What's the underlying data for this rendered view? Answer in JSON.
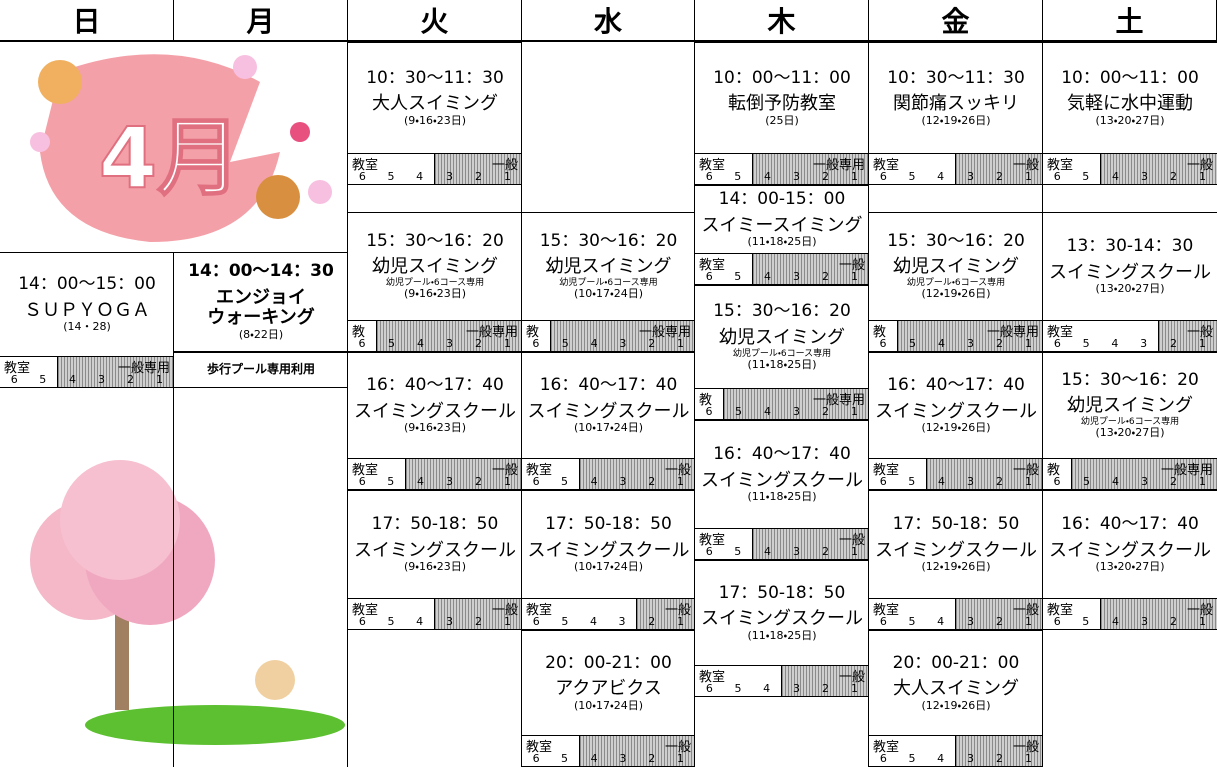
{
  "month": "4月",
  "days": [
    {
      "name": "日",
      "blocks": [
        {
          "time": "14：00〜15：00",
          "title": [
            "ＳＵＰＹＯＧＡ"
          ],
          "dates": "(14・28)",
          "lanes": {
            "classroom": {
              "label": "教室",
              "numbers": [
                "6",
                "5"
              ]
            },
            "general": {
              "label": "一般専用",
              "numbers": [
                "4",
                "3",
                "2",
                "1"
              ]
            }
          }
        }
      ]
    },
    {
      "name": "月",
      "blocks": [
        {
          "time": "14：00〜14：30",
          "title": [
            "エンジョイ",
            "ウォーキング"
          ],
          "dates": "(8・22日)"
        },
        {
          "text": "歩行プール専用利用"
        }
      ]
    },
    {
      "name": "火",
      "blocks": [
        {
          "time": "10：30〜11：30",
          "title": [
            "大人スイミング"
          ],
          "dates": "(9・16・23日)",
          "lanes": {
            "classroom": {
              "label": "教室",
              "numbers": [
                "6",
                "5",
                "4"
              ]
            },
            "general": {
              "label": "一般",
              "numbers": [
                "3",
                "2",
                "1"
              ]
            }
          }
        },
        {
          "time": "15：30〜16：20",
          "title": [
            "幼児スイミング"
          ],
          "note": "幼児プール・6コース専用",
          "dates": "(9・16・23日)",
          "lanes": {
            "classroom": {
              "label": "教",
              "numbers": [
                "6"
              ]
            },
            "general": {
              "label": "一般専用",
              "numbers": [
                "5",
                "4",
                "3",
                "2",
                "1"
              ]
            }
          }
        },
        {
          "time": "16：40〜17：40",
          "title": [
            "スイミングスクール"
          ],
          "dates": "(9・16・23日)",
          "lanes": {
            "classroom": {
              "label": "教室",
              "numbers": [
                "6",
                "5"
              ]
            },
            "general": {
              "label": "一般",
              "numbers": [
                "4",
                "3",
                "2",
                "1"
              ]
            }
          }
        },
        {
          "time": "17：50-18：50",
          "title": [
            "スイミングスクール"
          ],
          "dates": "(9・16・23日)",
          "lanes": {
            "classroom": {
              "label": "教室",
              "numbers": [
                "6",
                "5",
                "4"
              ]
            },
            "general": {
              "label": "一般",
              "numbers": [
                "3",
                "2",
                "1"
              ]
            }
          }
        }
      ]
    },
    {
      "name": "水",
      "blocks": [
        {
          "time": "15：30〜16：20",
          "title": [
            "幼児スイミング"
          ],
          "note": "幼児プール・6コース専用",
          "dates": "(10・17・24日)",
          "lanes": {
            "classroom": {
              "label": "教",
              "numbers": [
                "6"
              ]
            },
            "general": {
              "label": "一般専用",
              "numbers": [
                "5",
                "4",
                "3",
                "2",
                "1"
              ]
            }
          }
        },
        {
          "time": "16：40〜17：40",
          "title": [
            "スイミングスクール"
          ],
          "dates": "(10・17・24日)",
          "lanes": {
            "classroom": {
              "label": "教室",
              "numbers": [
                "6",
                "5"
              ]
            },
            "general": {
              "label": "一般",
              "numbers": [
                "4",
                "3",
                "2",
                "1"
              ]
            }
          }
        },
        {
          "time": "17：50-18：50",
          "title": [
            "スイミングスクール"
          ],
          "dates": "(10・17・24日)",
          "lanes": {
            "classroom": {
              "label": "教室",
              "numbers": [
                "6",
                "5",
                "4",
                "3"
              ]
            },
            "general": {
              "label": "一般",
              "numbers": [
                "2",
                "1"
              ]
            }
          }
        },
        {
          "time": "20：00-21：00",
          "title": [
            "アクアビクス"
          ],
          "dates": "(10・17・24日)",
          "lanes": {
            "classroom": {
              "label": "教室",
              "numbers": [
                "6",
                "5"
              ]
            },
            "general": {
              "label": "一般",
              "numbers": [
                "4",
                "3",
                "2",
                "1"
              ]
            }
          }
        }
      ]
    },
    {
      "name": "木",
      "blocks": [
        {
          "time": "10：00〜11：00",
          "title": [
            "転倒予防教室"
          ],
          "dates": "(25日)",
          "lanes": {
            "classroom": {
              "label": "教室",
              "numbers": [
                "6",
                "5"
              ]
            },
            "general": {
              "label": "一般専用",
              "numbers": [
                "4",
                "3",
                "2",
                "1"
              ]
            }
          }
        },
        {
          "time": "14：00-15：00",
          "title": [
            "スイミースイミング"
          ],
          "dates": "(11・18・25日)",
          "lanes": {
            "classroom": {
              "label": "教室",
              "numbers": [
                "6",
                "5"
              ]
            },
            "general": {
              "label": "一般",
              "numbers": [
                "4",
                "3",
                "2",
                "1"
              ]
            }
          }
        },
        {
          "time": "15：30〜16：20",
          "title": [
            "幼児スイミング"
          ],
          "note": "幼児プール・6コース専用",
          "dates": "(11・18・25日)",
          "lanes": {
            "classroom": {
              "label": "教",
              "numbers": [
                "6"
              ]
            },
            "general": {
              "label": "一般専用",
              "numbers": [
                "5",
                "4",
                "3",
                "2",
                "1"
              ]
            }
          }
        },
        {
          "time": "16：40〜17：40",
          "title": [
            "スイミングスクール"
          ],
          "dates": "(11・18・25日)",
          "lanes": {
            "classroom": {
              "label": "教室",
              "numbers": [
                "6",
                "5"
              ]
            },
            "general": {
              "label": "一般",
              "numbers": [
                "4",
                "3",
                "2",
                "1"
              ]
            }
          }
        },
        {
          "time": "17：50-18：50",
          "title": [
            "スイミングスクール"
          ],
          "dates": "(11・18・25日)",
          "lanes": {
            "classroom": {
              "label": "教室",
              "numbers": [
                "6",
                "5",
                "4"
              ]
            },
            "general": {
              "label": "一般",
              "numbers": [
                "3",
                "2",
                "1"
              ]
            }
          }
        }
      ]
    },
    {
      "name": "金",
      "blocks": [
        {
          "time": "10：30〜11：30",
          "title": [
            "関節痛スッキリ"
          ],
          "dates": "(12・19・26日)",
          "lanes": {
            "classroom": {
              "label": "教室",
              "numbers": [
                "6",
                "5",
                "4"
              ]
            },
            "general": {
              "label": "一般",
              "numbers": [
                "3",
                "2",
                "1"
              ]
            }
          }
        },
        {
          "time": "15：30〜16：20",
          "title": [
            "幼児スイミング"
          ],
          "note": "幼児プール・6コース専用",
          "dates": "(12・19・26日)",
          "lanes": {
            "classroom": {
              "label": "教",
              "numbers": [
                "6"
              ]
            },
            "general": {
              "label": "一般専用",
              "numbers": [
                "5",
                "4",
                "3",
                "2",
                "1"
              ]
            }
          }
        },
        {
          "time": "16：40〜17：40",
          "title": [
            "スイミングスクール"
          ],
          "dates": "(12・19・26日)",
          "lanes": {
            "classroom": {
              "label": "教室",
              "numbers": [
                "6",
                "5"
              ]
            },
            "general": {
              "label": "一般",
              "numbers": [
                "4",
                "3",
                "2",
                "1"
              ]
            }
          }
        },
        {
          "time": "17：50-18：50",
          "title": [
            "スイミングスクール"
          ],
          "dates": "(12・19・26日)",
          "lanes": {
            "classroom": {
              "label": "教室",
              "numbers": [
                "6",
                "5",
                "4"
              ]
            },
            "general": {
              "label": "一般",
              "numbers": [
                "3",
                "2",
                "1"
              ]
            }
          }
        },
        {
          "time": "20：00-21：00",
          "title": [
            "大人スイミング"
          ],
          "dates": "(12・19・26日)",
          "lanes": {
            "classroom": {
              "label": "教室",
              "numbers": [
                "6",
                "5",
                "4"
              ]
            },
            "general": {
              "label": "一般",
              "numbers": [
                "3",
                "2",
                "1"
              ]
            }
          }
        }
      ]
    },
    {
      "name": "土",
      "blocks": [
        {
          "time": "10：00〜11：00",
          "title": [
            "気軽に水中運動"
          ],
          "dates": "(13・20・27日)",
          "lanes": {
            "classroom": {
              "label": "教室",
              "numbers": [
                "6",
                "5"
              ]
            },
            "general": {
              "label": "一般",
              "numbers": [
                "4",
                "3",
                "2",
                "1"
              ]
            }
          }
        },
        {
          "time": "13：30-14：30",
          "title": [
            "スイミングスクール"
          ],
          "dates": "(13・20・27日)",
          "lanes": {
            "classroom": {
              "label": "教室",
              "numbers": [
                "6",
                "5",
                "4",
                "3"
              ]
            },
            "general": {
              "label": "一般",
              "numbers": [
                "2",
                "1"
              ]
            }
          }
        },
        {
          "time": "15：30〜16：20",
          "title": [
            "幼児スイミング"
          ],
          "note": "幼児プール・6コース専用",
          "dates": "(13・20・27日)",
          "lanes": {
            "classroom": {
              "label": "教",
              "numbers": [
                "6"
              ]
            },
            "general": {
              "label": "一般専用",
              "numbers": [
                "5",
                "4",
                "3",
                "2",
                "1"
              ]
            }
          }
        },
        {
          "time": "16：40〜17：40",
          "title": [
            "スイミングスクール"
          ],
          "dates": "(13・20・27日)",
          "lanes": {
            "classroom": {
              "label": "教室",
              "numbers": [
                "6",
                "5"
              ]
            },
            "general": {
              "label": "一般",
              "numbers": [
                "4",
                "3",
                "2",
                "1"
              ]
            }
          }
        }
      ]
    }
  ]
}
